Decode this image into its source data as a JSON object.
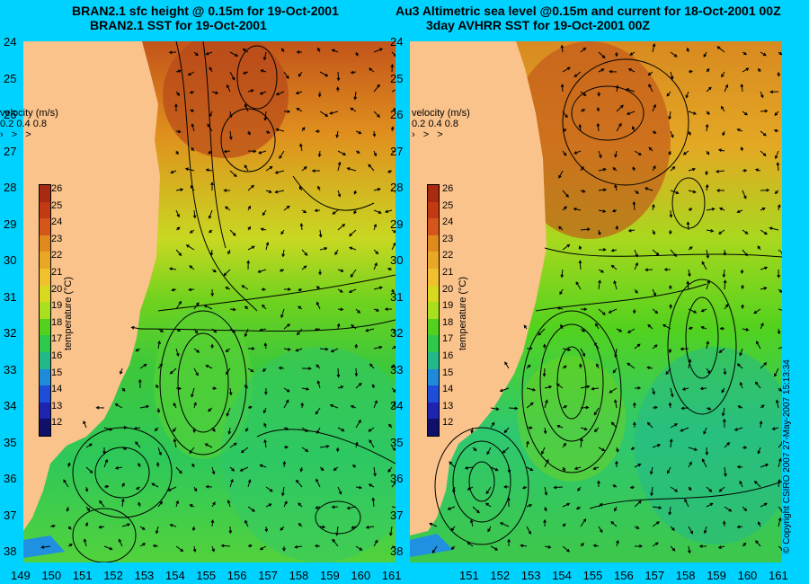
{
  "titles": {
    "left_line1": "BRAN2.1 sfc height @ 0.15m for 19-Oct-2001",
    "left_line2": "BRAN2.1 SST for 19-Oct-2001",
    "right_line1": "Au3 Altimetric sea level  @0.15m and current for 18-Oct-2001 00Z",
    "right_line2": "3day AVHRR SST for 19-Oct-2001 00Z"
  },
  "axes": {
    "lat_labels": [
      "24",
      "25",
      "26",
      "27",
      "28",
      "29",
      "30",
      "31",
      "32",
      "33",
      "34",
      "35",
      "36",
      "37",
      "38"
    ],
    "lon_labels": [
      "149",
      "150",
      "151",
      "152",
      "153",
      "154",
      "155",
      "156",
      "157",
      "158",
      "159",
      "160",
      "161"
    ],
    "lon_labels_right": [
      "151",
      "152",
      "153",
      "154",
      "155",
      "156",
      "157",
      "158",
      "159",
      "160",
      "161"
    ]
  },
  "velocity_legend": {
    "title": "velocity (m/s)",
    "scale": "0.2 0.4 0.8",
    "arrows": "› > >"
  },
  "colorbar": {
    "title": "temperature (°C)",
    "ticks": [
      "26",
      "25",
      "24",
      "23",
      "22",
      "21",
      "20",
      "19",
      "18",
      "17",
      "16",
      "15",
      "14",
      "13",
      "12"
    ],
    "colors": [
      "#a82a10",
      "#c23a12",
      "#d4561a",
      "#e08a1e",
      "#e8a826",
      "#f0c02e",
      "#d8d81e",
      "#a8e01e",
      "#52d21e",
      "#2ec84a",
      "#22b88a",
      "#1e8ad8",
      "#1e4ed8",
      "#1e24b0",
      "#10106a"
    ]
  },
  "colors": {
    "background": "#00d2ff",
    "land": "#fac38c",
    "contour": "#000000"
  },
  "copyright": "© Copyright CSIRO 2007   27-May-2007 15:13:34"
}
